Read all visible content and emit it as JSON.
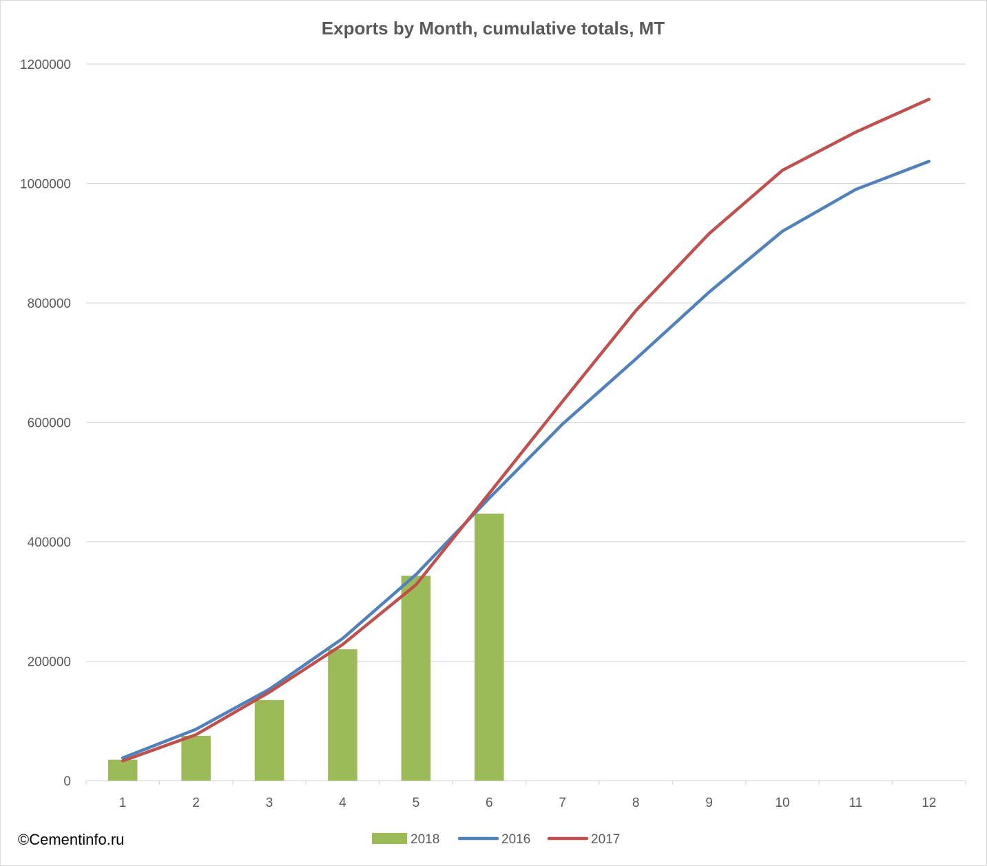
{
  "chart_data": {
    "type": "bar",
    "title": "Exports by Month, cumulative totals, MT",
    "xlabel": "",
    "ylabel": "",
    "categories": [
      "1",
      "2",
      "3",
      "4",
      "5",
      "6",
      "7",
      "8",
      "9",
      "10",
      "11",
      "12"
    ],
    "ylim": [
      0,
      1200000
    ],
    "yticks": [
      "0",
      "200000",
      "400000",
      "600000",
      "800000",
      "1000000",
      "1200000"
    ],
    "grid": true,
    "legend_position": "bottom",
    "series": [
      {
        "name": "2018",
        "type": "bar",
        "color": "#9bbb59",
        "values": [
          35000,
          75000,
          135000,
          220000,
          343000,
          447000,
          null,
          null,
          null,
          null,
          null,
          null
        ]
      },
      {
        "name": "2016",
        "type": "line",
        "color": "#4f81bd",
        "values": [
          38000,
          86000,
          153000,
          238000,
          345000,
          473000,
          597000,
          706000,
          818000,
          920000,
          990000,
          1037000
        ]
      },
      {
        "name": "2017",
        "type": "line",
        "color": "#c0504d",
        "values": [
          33000,
          77000,
          148000,
          228000,
          328000,
          481000,
          635000,
          787000,
          916000,
          1022000,
          1086000,
          1141000
        ]
      }
    ]
  },
  "watermark": "©Cementinfo.ru"
}
